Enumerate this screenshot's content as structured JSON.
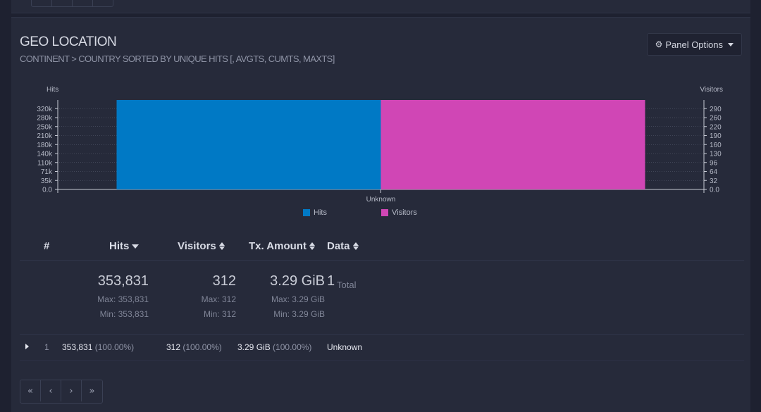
{
  "panel": {
    "title": "GEO LOCATION",
    "subtitle": "CONTINENT > COUNTRY SORTED BY UNIQUE HITS [, AVGTS, CUMTS, MAXTS]",
    "options_label": "Panel Options"
  },
  "chart_data": {
    "type": "bar",
    "categories": [
      "Unknown"
    ],
    "series": [
      {
        "name": "Hits",
        "values": [
          353831
        ],
        "color": "#0079c5",
        "axis": "left"
      },
      {
        "name": "Visitors",
        "values": [
          312
        ],
        "color": "#d046b5",
        "axis": "right"
      }
    ],
    "ylabel_left": "Hits",
    "ylabel_right": "Visitors",
    "left_ticks": [
      "0.0",
      "35k",
      "71k",
      "110k",
      "140k",
      "180k",
      "210k",
      "250k",
      "280k",
      "320k"
    ],
    "right_ticks": [
      "0.0",
      "32",
      "64",
      "96",
      "130",
      "160",
      "190",
      "220",
      "260",
      "290"
    ],
    "ylim_left": [
      0,
      353831
    ],
    "ylim_right": [
      0,
      312
    ],
    "grid": true,
    "legend_position": "bottom"
  },
  "table": {
    "headers": {
      "num": "#",
      "hits": "Hits",
      "visitors": "Visitors",
      "tx": "Tx. Amount",
      "data": "Data"
    },
    "summary": {
      "hits": "353,831",
      "hits_max": "Max: 353,831",
      "hits_min": "Min: 353,831",
      "visitors": "312",
      "visitors_max": "Max: 312",
      "visitors_min": "Min: 312",
      "tx": "3.29 GiB",
      "tx_max": "Max: 3.29 GiB",
      "tx_min": "Min: 3.29 GiB",
      "total_count": "1",
      "total_label": "Total"
    },
    "rows": [
      {
        "num": "1",
        "hits": "353,831",
        "hits_pct": "(100.00%)",
        "visitors": "312",
        "visitors_pct": "(100.00%)",
        "tx": "3.29 GiB",
        "tx_pct": "(100.00%)",
        "data": "Unknown"
      }
    ]
  },
  "pager": {
    "first": "«",
    "prev": "‹",
    "next": "›",
    "last": "»"
  }
}
